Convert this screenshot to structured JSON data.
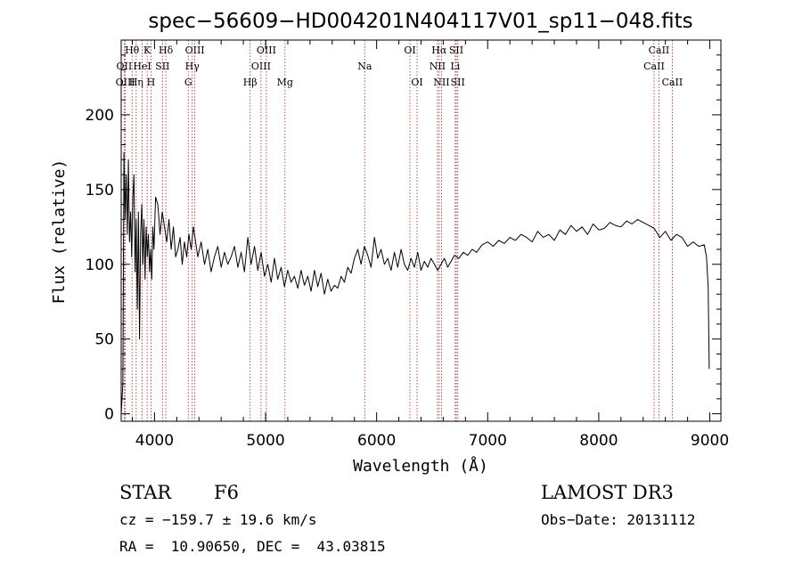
{
  "chart_data": {
    "type": "line",
    "title": "spec−56609−HD004201N404117V01_sp11−048.fits",
    "xlabel": "Wavelength (Å)",
    "ylabel": "Flux (relative)",
    "xlim": [
      3700,
      9100
    ],
    "ylim": [
      -5,
      250
    ],
    "x_ticks": [
      4000,
      5000,
      6000,
      7000,
      8000,
      9000
    ],
    "x_tick_labels": [
      "4000",
      "5000",
      "6000",
      "7000",
      "8000",
      "9000"
    ],
    "y_ticks": [
      0,
      50,
      100,
      150,
      200
    ],
    "y_tick_labels": [
      "0",
      "50",
      "100",
      "150",
      "200"
    ],
    "grid": false,
    "series": [
      {
        "name": "spectrum",
        "color": "#000000",
        "x": [
          3700,
          3715,
          3725,
          3735,
          3745,
          3755,
          3765,
          3775,
          3785,
          3795,
          3805,
          3815,
          3825,
          3835,
          3845,
          3855,
          3865,
          3875,
          3885,
          3895,
          3905,
          3915,
          3925,
          3935,
          3945,
          3955,
          3965,
          3975,
          3985,
          3995,
          4010,
          4030,
          4050,
          4070,
          4090,
          4110,
          4130,
          4150,
          4170,
          4190,
          4210,
          4230,
          4250,
          4270,
          4290,
          4310,
          4330,
          4350,
          4370,
          4390,
          4420,
          4450,
          4480,
          4510,
          4540,
          4570,
          4600,
          4630,
          4660,
          4690,
          4720,
          4750,
          4780,
          4810,
          4840,
          4870,
          4900,
          4930,
          4960,
          4990,
          5020,
          5050,
          5080,
          5110,
          5140,
          5170,
          5200,
          5230,
          5260,
          5290,
          5320,
          5350,
          5380,
          5410,
          5440,
          5470,
          5500,
          5530,
          5560,
          5590,
          5620,
          5650,
          5680,
          5710,
          5740,
          5770,
          5800,
          5830,
          5860,
          5890,
          5920,
          5950,
          5980,
          6010,
          6040,
          6070,
          6100,
          6130,
          6160,
          6190,
          6220,
          6250,
          6280,
          6310,
          6340,
          6370,
          6400,
          6430,
          6460,
          6490,
          6520,
          6550,
          6580,
          6610,
          6640,
          6670,
          6700,
          6740,
          6780,
          6820,
          6860,
          6900,
          6950,
          7000,
          7050,
          7100,
          7150,
          7200,
          7250,
          7300,
          7350,
          7400,
          7450,
          7500,
          7550,
          7600,
          7650,
          7700,
          7750,
          7800,
          7850,
          7900,
          7950,
          8000,
          8050,
          8100,
          8150,
          8200,
          8250,
          8300,
          8350,
          8400,
          8450,
          8500,
          8550,
          8600,
          8650,
          8700,
          8750,
          8800,
          8850,
          8900,
          8950,
          8970,
          8985,
          8995
        ],
        "values": [
          0,
          20,
          175,
          130,
          160,
          120,
          170,
          115,
          135,
          105,
          145,
          160,
          95,
          130,
          70,
          135,
          50,
          120,
          140,
          100,
          130,
          90,
          125,
          105,
          120,
          95,
          110,
          90,
          125,
          110,
          145,
          140,
          120,
          135,
          125,
          115,
          130,
          110,
          125,
          105,
          110,
          118,
          100,
          115,
          105,
          120,
          110,
          125,
          115,
          105,
          115,
          100,
          110,
          95,
          105,
          112,
          98,
          108,
          100,
          105,
          112,
          98,
          108,
          95,
          118,
          100,
          112,
          96,
          108,
          92,
          100,
          88,
          104,
          90,
          98,
          85,
          96,
          88,
          92,
          84,
          96,
          86,
          92,
          82,
          96,
          85,
          94,
          80,
          90,
          82,
          86,
          84,
          92,
          88,
          98,
          94,
          104,
          110,
          100,
          112,
          106,
          98,
          118,
          104,
          110,
          100,
          104,
          96,
          108,
          98,
          110,
          100,
          96,
          104,
          98,
          108,
          96,
          102,
          98,
          104,
          100,
          96,
          100,
          104,
          98,
          102,
          106,
          104,
          108,
          106,
          110,
          108,
          113,
          115,
          112,
          116,
          114,
          118,
          116,
          120,
          118,
          115,
          122,
          118,
          120,
          116,
          123,
          120,
          126,
          122,
          125,
          120,
          127,
          123,
          124,
          128,
          126,
          125,
          129,
          127,
          130,
          128,
          126,
          124,
          118,
          122,
          116,
          120,
          118,
          112,
          115,
          112,
          113,
          105,
          85,
          30
        ]
      }
    ],
    "lines": [
      {
        "label": "Hθ",
        "wl": 3798,
        "row": 1
      },
      {
        "label": "OII",
        "wl": 3727,
        "row": 2
      },
      {
        "label": "OIII",
        "wl": 3737,
        "row": 3
      },
      {
        "label": "K",
        "wl": 3934,
        "row": 1
      },
      {
        "label": "HeI",
        "wl": 3889,
        "row": 2
      },
      {
        "label": "Hη",
        "wl": 3835,
        "row": 3
      },
      {
        "label": "H",
        "wl": 3968,
        "row": 3
      },
      {
        "label": "Hδ",
        "wl": 4102,
        "row": 1
      },
      {
        "label": "SII",
        "wl": 4072,
        "row": 2
      },
      {
        "label": "OIII",
        "wl": 4363,
        "row": 1
      },
      {
        "label": "Hγ",
        "wl": 4340,
        "row": 2
      },
      {
        "label": "G",
        "wl": 4304,
        "row": 3
      },
      {
        "label": "Hβ",
        "wl": 4861,
        "row": 3
      },
      {
        "label": "OIII",
        "wl": 5007,
        "row": 1
      },
      {
        "label": "OIII",
        "wl": 4959,
        "row": 2
      },
      {
        "label": "Mg",
        "wl": 5175,
        "row": 3
      },
      {
        "label": "Na",
        "wl": 5893,
        "row": 2
      },
      {
        "label": "OI",
        "wl": 6300,
        "row": 1
      },
      {
        "label": "OI",
        "wl": 6364,
        "row": 3
      },
      {
        "label": "Hα",
        "wl": 6563,
        "row": 1
      },
      {
        "label": "NII",
        "wl": 6548,
        "row": 2
      },
      {
        "label": "NII",
        "wl": 6584,
        "row": 3
      },
      {
        "label": "SII",
        "wl": 6717,
        "row": 1
      },
      {
        "label": "Li",
        "wl": 6708,
        "row": 2
      },
      {
        "label": "SII",
        "wl": 6731,
        "row": 3
      },
      {
        "label": "CaII",
        "wl": 8542,
        "row": 1
      },
      {
        "label": "CaII",
        "wl": 8498,
        "row": 2
      },
      {
        "label": "CaII",
        "wl": 8662,
        "row": 3
      }
    ]
  },
  "info": {
    "object_class": "STAR",
    "subclass": "F6",
    "survey": "LAMOST DR3",
    "cz": "cz = −159.7 ± 19.6 km/s",
    "obs_date": "Obs−Date: 20131112",
    "radec": "RA =  10.90650, DEC =  43.03815"
  },
  "colors": {
    "line_marker": "#b02020",
    "axis": "#000000",
    "spectrum": "#000000"
  }
}
